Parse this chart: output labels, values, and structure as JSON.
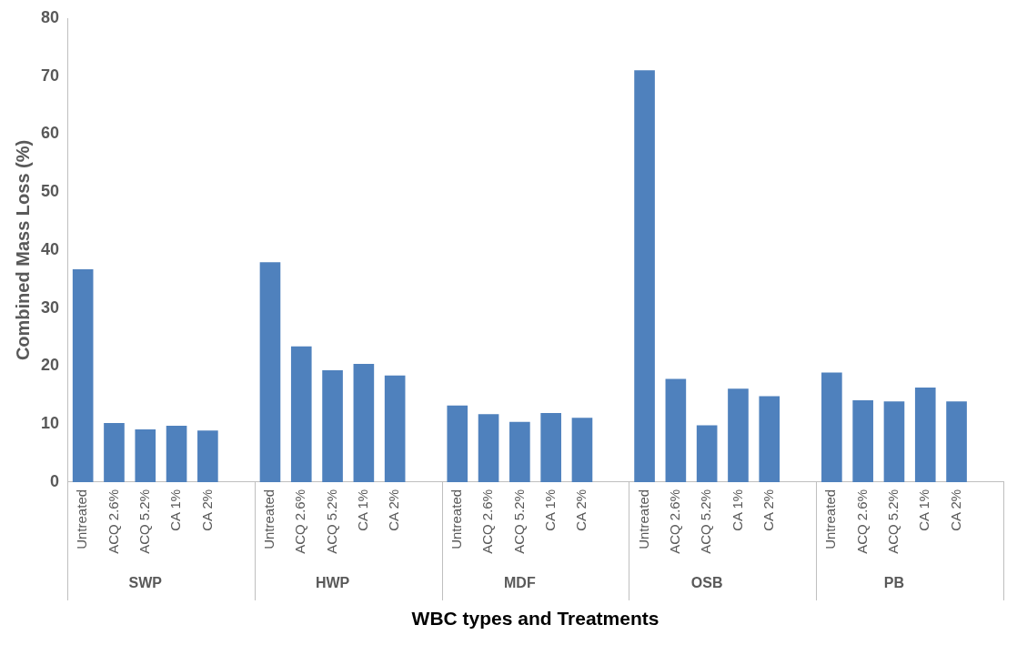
{
  "chart_data": {
    "type": "bar",
    "xlabel": "WBC types and Treatments",
    "ylabel": "Combined Mass Loss (%)",
    "categories": [
      "Untreated",
      "ACQ 2.6%",
      "ACQ 5.2%",
      "CA 1%",
      "CA 2%",
      null,
      "Untreated",
      "ACQ 2.6%",
      "ACQ 5.2%",
      "CA 1%",
      "CA 2%",
      null,
      "Untreated",
      "ACQ 2.6%",
      "ACQ 5.2%",
      "CA 1%",
      "CA 2%",
      null,
      "Untreated",
      "ACQ 2.6%",
      "ACQ 5.2%",
      "CA 1%",
      "CA 2%",
      null,
      "Untreated",
      "ACQ 2.6%",
      "ACQ 5.2%",
      "CA 1%",
      "CA 2%",
      null
    ],
    "values": [
      36.7,
      10.2,
      9.1,
      9.7,
      8.9,
      null,
      37.9,
      23.4,
      19.3,
      20.4,
      18.4,
      null,
      13.2,
      11.7,
      10.4,
      11.9,
      11.1,
      null,
      71.0,
      17.8,
      9.8,
      16.1,
      14.8,
      null,
      18.9,
      14.1,
      13.9,
      16.3,
      13.9,
      null
    ],
    "color": "#4f81bd",
    "ylim": [
      0,
      80
    ],
    "yticks": [
      0,
      10,
      20,
      30,
      40,
      50,
      60,
      70,
      80
    ],
    "annotations": [
      "SWP",
      "HWP",
      "MDF",
      "OSB",
      "PB"
    ]
  }
}
